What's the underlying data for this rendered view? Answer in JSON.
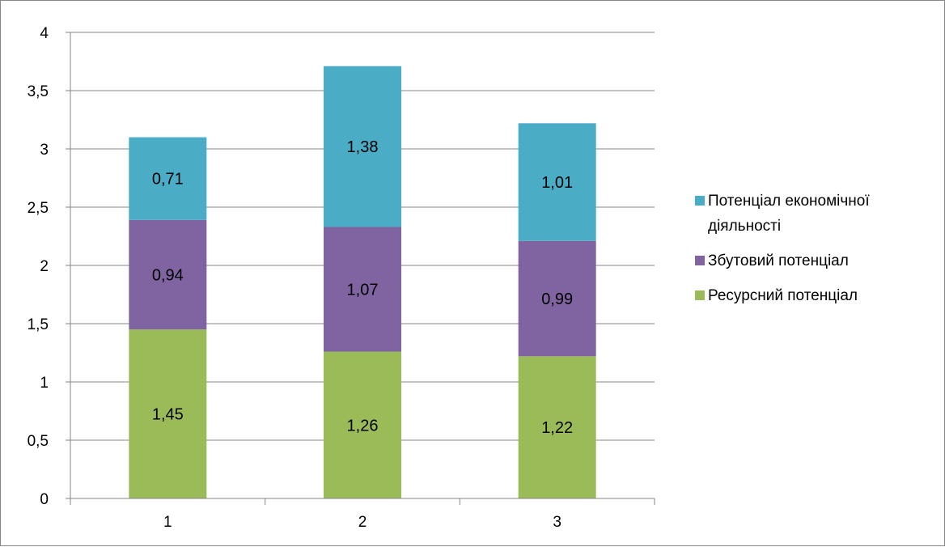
{
  "chart_data": {
    "type": "bar",
    "stacked": true,
    "categories": [
      "1",
      "2",
      "3"
    ],
    "series": [
      {
        "name": "Ресурсний потенціал",
        "values": [
          1.45,
          1.26,
          1.22
        ],
        "labels": [
          "1,45",
          "1,26",
          "1,22"
        ],
        "color": "#9BBB59"
      },
      {
        "name": "Збутовий потенціал",
        "values": [
          0.94,
          1.07,
          0.99
        ],
        "labels": [
          "0,94",
          "1,07",
          "0,99"
        ],
        "color": "#8064A2"
      },
      {
        "name": "Потенціал економічної діяльності",
        "values": [
          0.71,
          1.38,
          1.01
        ],
        "labels": [
          "0,71",
          "1,38",
          "1,01"
        ],
        "color": "#4BACC6"
      }
    ],
    "ylim": [
      0,
      4
    ],
    "yticks": [
      "0",
      "0,5",
      "1",
      "1,5",
      "2",
      "2,5",
      "3",
      "3,5",
      "4"
    ],
    "grid": true,
    "legend_position": "right",
    "legend_order": [
      "Потенціал економічної діяльності",
      "Збутовий потенціал",
      "Ресурсний потенціал"
    ]
  }
}
